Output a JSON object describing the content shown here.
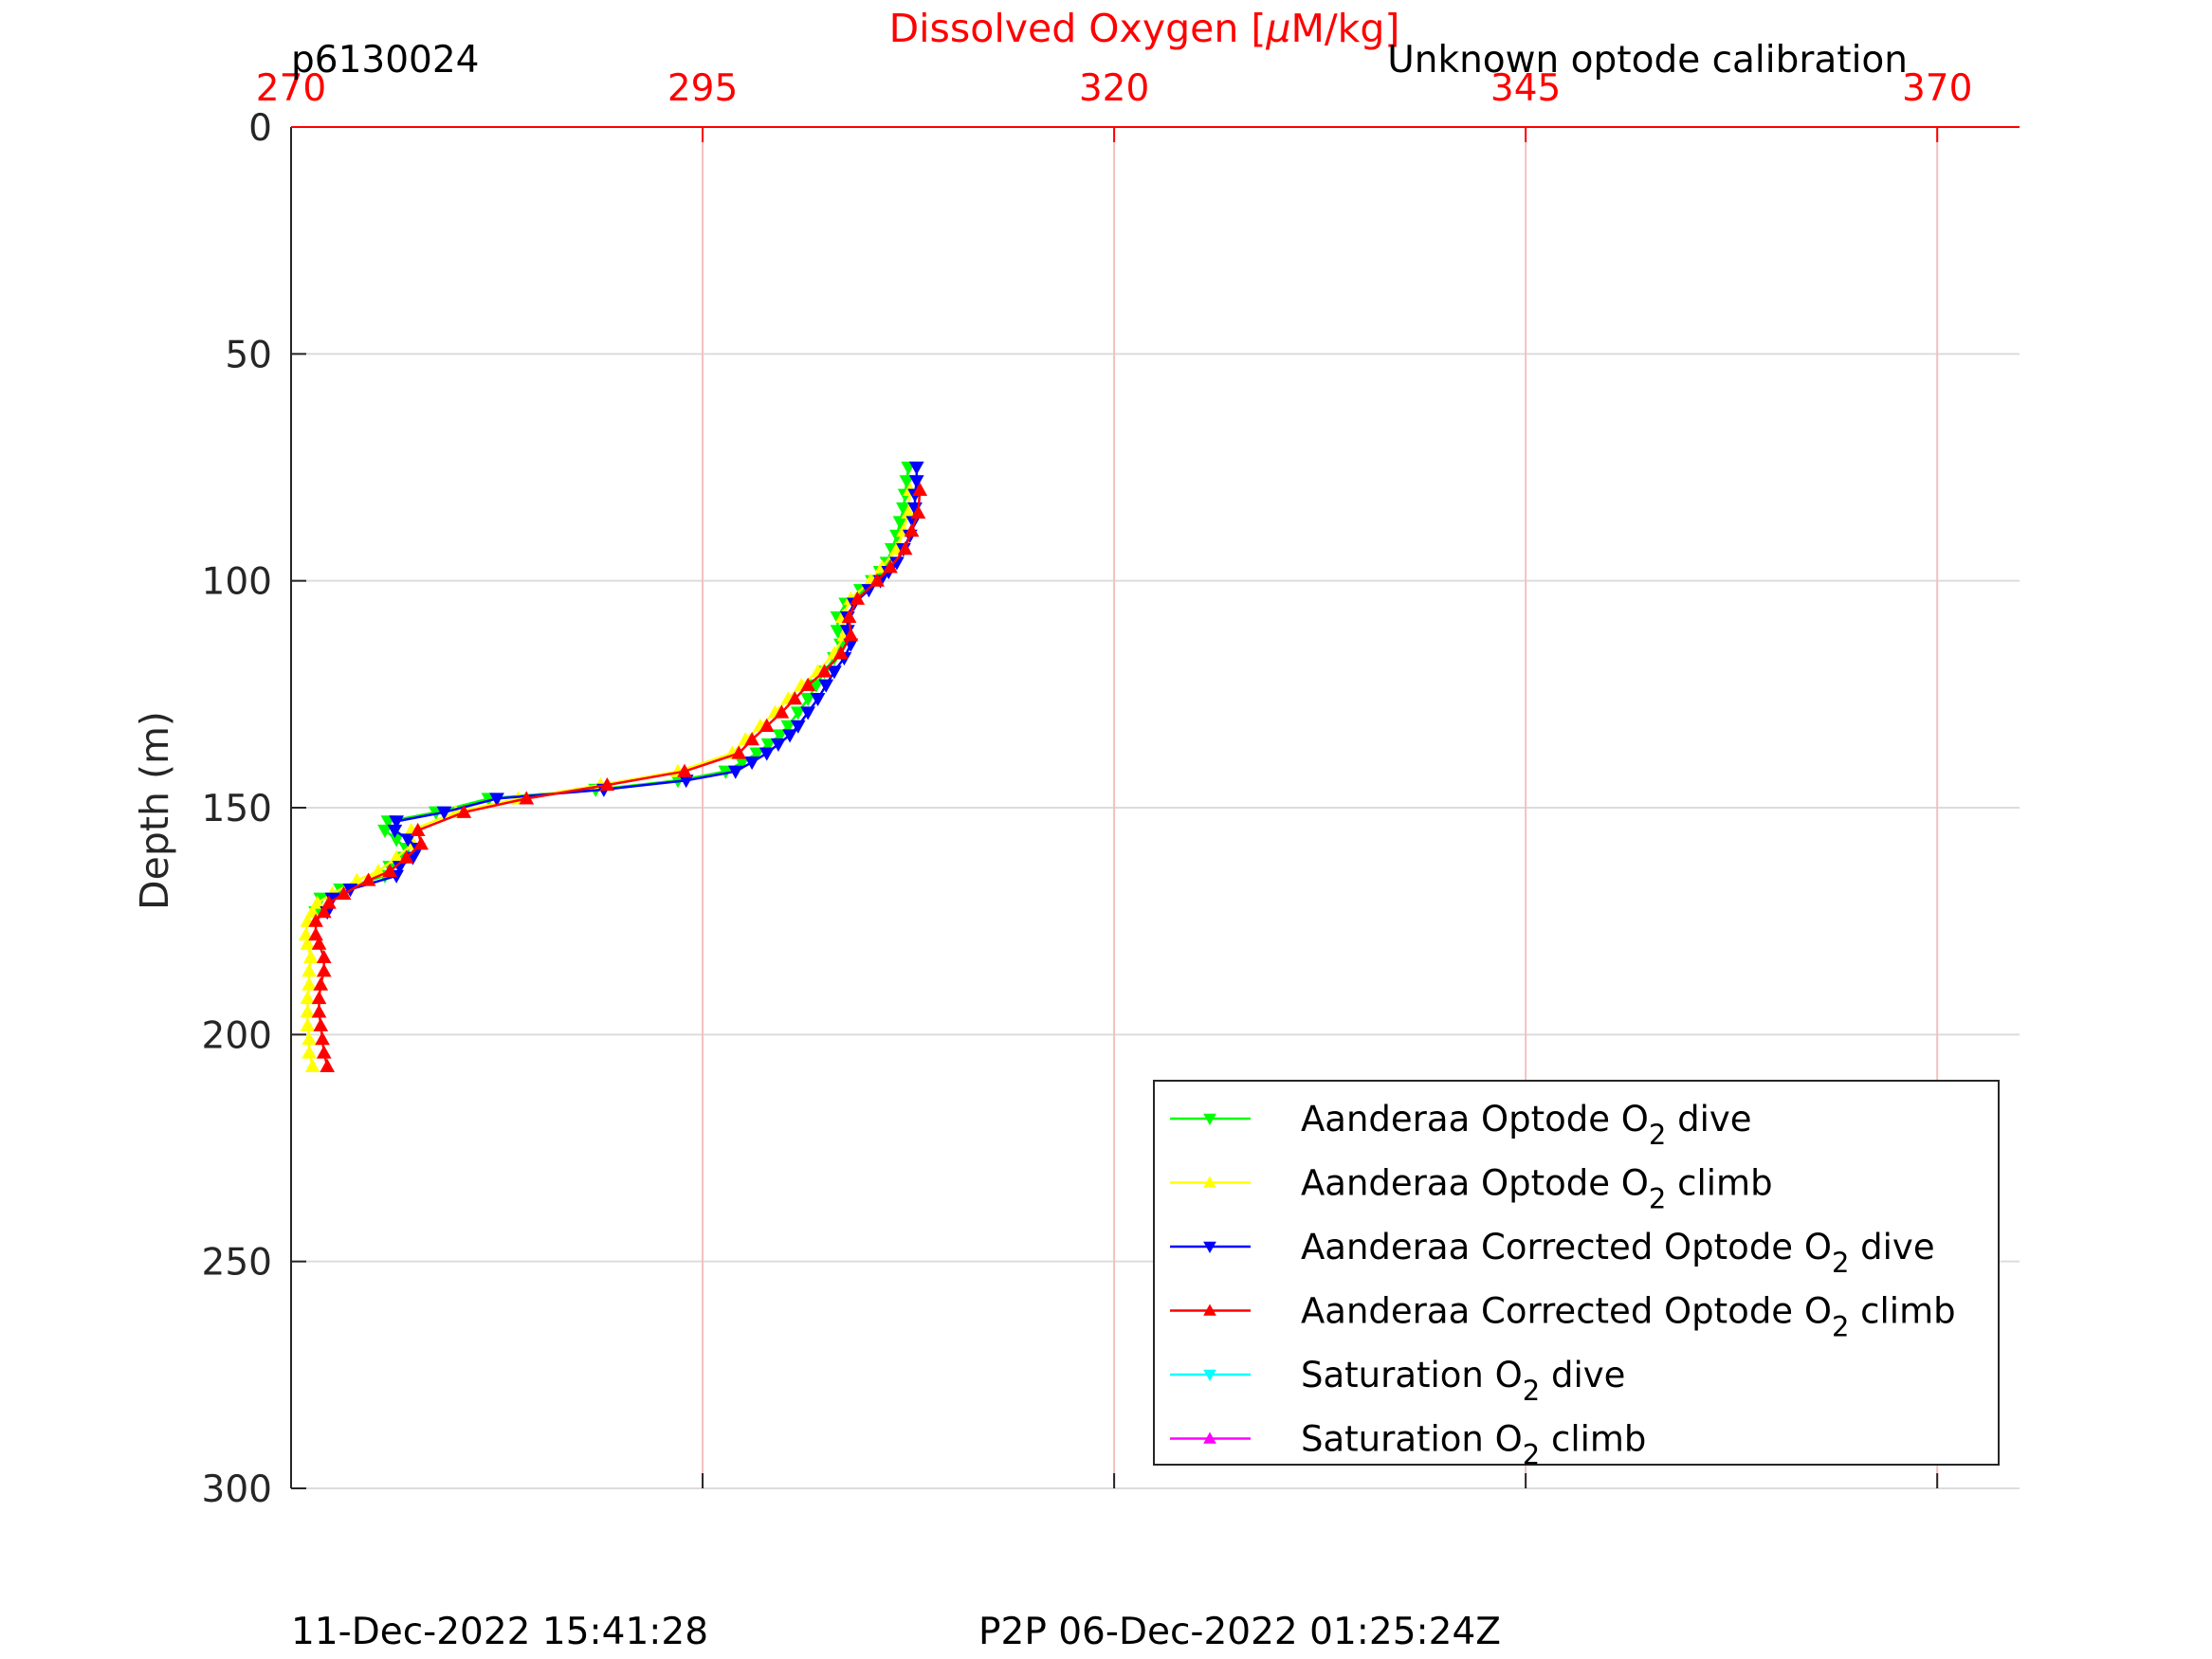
{
  "header": {
    "title": "Dissolved Oxygen [",
    "title_mu": "μ",
    "title_tail": "M/kg]",
    "profile_id": "p6130024",
    "calibration_note": "Unknown optode calibration"
  },
  "footer": {
    "left_timestamp": "11-Dec-2022 15:41:28",
    "right_timestamp": "P2P 06-Dec-2022 01:25:24Z"
  },
  "colors": {
    "axis_top": "#ff0000",
    "grid_x": "#f3c0c0",
    "grid_y": "#dcdcdc",
    "axis": "#262626"
  },
  "chart_data": {
    "type": "line",
    "ylabel": "Depth (m)",
    "xlabel": "Dissolved Oxygen [μM/kg]",
    "xlim": [
      270,
      375
    ],
    "ylim": [
      0,
      300
    ],
    "y_reversed": true,
    "xticks": [
      270,
      295,
      320,
      345,
      370
    ],
    "yticks": [
      0,
      50,
      100,
      150,
      200,
      250,
      300
    ],
    "x_grid": true,
    "y_grid": true,
    "legend_position": "lower-right",
    "series": [
      {
        "name": "Aanderaa Optode O2 dive",
        "label_main": "Aanderaa Optode O",
        "label_tail": " dive",
        "color": "#00ff00",
        "marker": "down",
        "x": [
          307.5,
          307.4,
          307.3,
          307.2,
          307.0,
          306.8,
          306.5,
          306.2,
          305.8,
          305.3,
          304.6,
          303.7,
          303.2,
          303.2,
          303.4,
          303.0,
          302.4,
          301.9,
          301.4,
          300.8,
          300.2,
          299.7,
          299.0,
          298.3,
          297.4,
          296.4,
          293.5,
          288.5,
          282.0,
          278.8,
          275.9,
          275.7,
          276.4,
          277.0,
          276.8,
          276.0,
          275.7,
          273.0,
          271.8,
          271.5
        ],
        "y": [
          75,
          78,
          81,
          84,
          87,
          90,
          93,
          96,
          98,
          100,
          102,
          105,
          108,
          111,
          114,
          117,
          120,
          123,
          126,
          129,
          132,
          134,
          136,
          138,
          140,
          142,
          144,
          146,
          148,
          151,
          153,
          155,
          157,
          159,
          161,
          163,
          165,
          168,
          170,
          173
        ]
      },
      {
        "name": "Aanderaa Optode O2 climb",
        "label_main": "Aanderaa Optode O",
        "label_tail": " climb",
        "color": "#ffff00",
        "marker": "up",
        "x": [
          271.3,
          271.1,
          271.1,
          271.0,
          271.0,
          271.0,
          271.1,
          271.1,
          271.2,
          271.0,
          270.9,
          271.0,
          271.3,
          271.6,
          272.5,
          274.0,
          275.3,
          276.4,
          277.4,
          277.3,
          280.0,
          283.8,
          288.8,
          293.5,
          296.8,
          297.6,
          298.5,
          299.4,
          300.2,
          301.0,
          302.0,
          303.0,
          303.6,
          303.5,
          304.0,
          305.2,
          305.9,
          306.8,
          307.2,
          307.5,
          307.6
        ],
        "y": [
          207,
          204,
          201,
          198,
          195,
          192,
          189,
          186,
          183,
          180,
          178,
          175,
          173,
          171,
          169,
          166,
          164,
          161,
          158,
          155,
          151,
          148,
          145,
          142,
          138,
          135,
          132,
          129,
          126,
          123,
          120,
          116,
          112,
          108,
          104,
          100,
          97,
          93,
          89,
          85,
          80
        ]
      },
      {
        "name": "Aanderaa Corrected Optode O2 dive",
        "label_main": "Aanderaa Corrected Optode O",
        "label_tail": " dive",
        "color": "#0000ff",
        "marker": "down",
        "x": [
          308.0,
          308.0,
          307.9,
          307.9,
          307.8,
          307.6,
          307.2,
          306.8,
          306.3,
          305.8,
          305.1,
          304.2,
          303.8,
          303.8,
          304.0,
          303.6,
          303.0,
          302.5,
          302.0,
          301.4,
          300.8,
          300.3,
          299.6,
          298.9,
          298.0,
          297.0,
          294.0,
          289.0,
          282.5,
          279.3,
          276.4,
          276.3,
          277.1,
          277.7,
          277.4,
          276.6,
          276.4,
          273.6,
          272.5,
          272.2
        ],
        "y": [
          75,
          78,
          81,
          84,
          87,
          90,
          93,
          96,
          98,
          100,
          102,
          105,
          108,
          111,
          114,
          117,
          120,
          123,
          126,
          129,
          132,
          134,
          136,
          138,
          140,
          142,
          144,
          146,
          148,
          151,
          153,
          155,
          157,
          159,
          161,
          163,
          165,
          168,
          170,
          173
        ]
      },
      {
        "name": "Aanderaa Corrected Optode O2 climb",
        "label_main": "Aanderaa Corrected Optode O",
        "label_tail": " climb",
        "color": "#ff0000",
        "marker": "up",
        "x": [
          272.2,
          272.0,
          271.9,
          271.8,
          271.7,
          271.7,
          271.8,
          272.0,
          272.0,
          271.7,
          271.5,
          271.5,
          272.0,
          272.3,
          273.2,
          274.7,
          276.0,
          277.0,
          277.9,
          277.7,
          280.5,
          284.3,
          289.2,
          293.9,
          297.2,
          298.0,
          298.9,
          299.8,
          300.6,
          301.4,
          302.4,
          303.4,
          304.0,
          303.9,
          304.4,
          305.6,
          306.4,
          307.3,
          307.7,
          308.1,
          308.2
        ],
        "y": [
          207,
          204,
          201,
          198,
          195,
          192,
          189,
          186,
          183,
          180,
          178,
          175,
          173,
          171,
          169,
          166,
          164,
          161,
          158,
          155,
          151,
          148,
          145,
          142,
          138,
          135,
          132,
          129,
          126,
          123,
          120,
          116,
          112,
          108,
          104,
          100,
          97,
          93,
          89,
          85,
          80
        ]
      },
      {
        "name": "Saturation O2 dive",
        "label_main": "Saturation O",
        "label_tail": " dive",
        "color": "#00ffff",
        "marker": "down",
        "x": [],
        "y": []
      },
      {
        "name": "Saturation O2 climb",
        "label_main": "Saturation O",
        "label_tail": " climb",
        "color": "#ff00ff",
        "marker": "up",
        "x": [],
        "y": []
      }
    ]
  }
}
